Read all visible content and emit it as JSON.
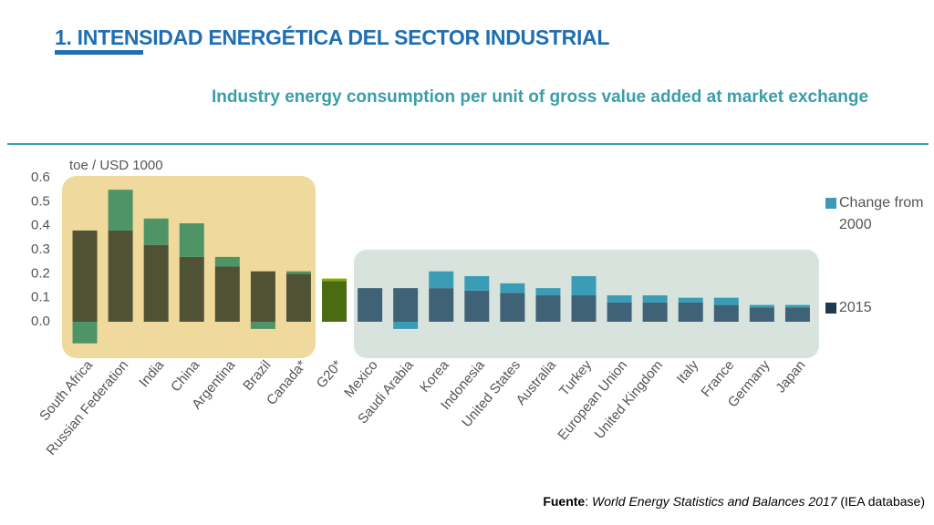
{
  "header": {
    "title": "1. INTENSIDAD ENERGÉTICA DEL SECTOR INDUSTRIAL"
  },
  "chart_data": {
    "type": "bar",
    "stacked": true,
    "title": "Industry energy consumption per unit of gross value added at market exchange",
    "y_label": "toe / USD 1000",
    "categories": [
      "South Africa",
      "Russian Federation",
      "India",
      "China",
      "Argentina",
      "Brazil",
      "Canada*",
      "G20*",
      "Mexico",
      "Saudi Arabia",
      "Korea",
      "Indonesia",
      "United States",
      "Australia",
      "Turkey",
      "European Union",
      "United Kingdom",
      "Italy",
      "France",
      "Germany",
      "Japan"
    ],
    "series": [
      {
        "name": "2015",
        "color": "#1d3a52",
        "colors": [
          "#4f5234",
          "#4f5234",
          "#4f5234",
          "#4f5234",
          "#4f5234",
          "#4f5234",
          "#4f5234",
          "#4a6b12",
          "#3f6277",
          "#3f6277",
          "#3f6277",
          "#3f6277",
          "#3f6277",
          "#3f6277",
          "#3f6277",
          "#3f6277",
          "#3f6277",
          "#3f6277",
          "#3f6277",
          "#3f6277",
          "#3f6277"
        ],
        "values": [
          0.38,
          0.38,
          0.32,
          0.27,
          0.23,
          0.21,
          0.2,
          0.17,
          0.14,
          0.14,
          0.14,
          0.13,
          0.12,
          0.11,
          0.11,
          0.08,
          0.08,
          0.08,
          0.07,
          0.06,
          0.06
        ]
      },
      {
        "name": "Change from 2000",
        "color": "#3a9db5",
        "colors": [
          "#4f9466",
          "#4f9466",
          "#4f9466",
          "#4f9466",
          "#4f9466",
          "#4f9466",
          "#4f9466",
          "#8aa800",
          "#3a9db5",
          "#3a9db5",
          "#3a9db5",
          "#3a9db5",
          "#3a9db5",
          "#3a9db5",
          "#3a9db5",
          "#3a9db5",
          "#3a9db5",
          "#3a9db5",
          "#3a9db5",
          "#3a9db5",
          "#3a9db5"
        ],
        "values": [
          -0.09,
          0.17,
          0.11,
          0.14,
          0.04,
          -0.03,
          0.01,
          0.01,
          0,
          -0.03,
          0.07,
          0.06,
          0.04,
          0.03,
          0.08,
          0.03,
          0.03,
          0.02,
          0.03,
          0.01,
          0.01
        ]
      }
    ],
    "ylim": [
      -0.15,
      0.6
    ],
    "yticks": [
      {
        "value": 0,
        "label": "0.0"
      },
      0.1,
      0.2,
      0.3,
      0.4,
      0.5,
      0.6
    ],
    "grid": false
  },
  "source": {
    "label": "Fuente",
    "separator": ":",
    "title": "World Energy Statistics and Balances 2017",
    "publisher": "(IEA database)"
  }
}
